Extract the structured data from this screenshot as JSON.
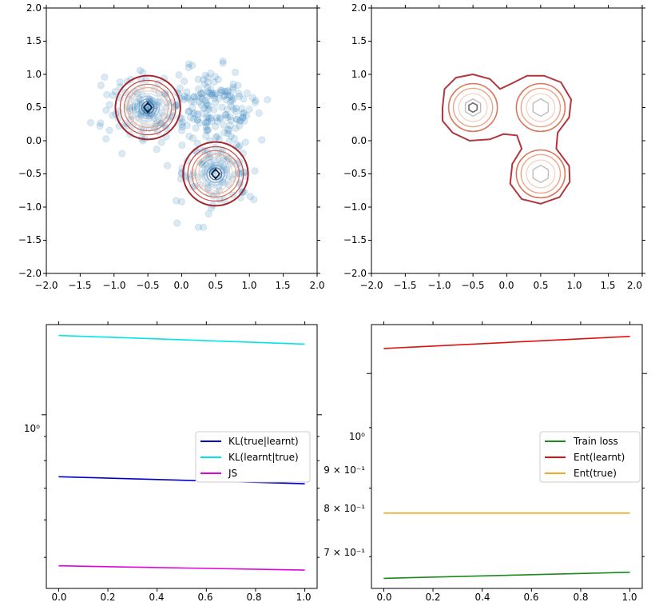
{
  "chart_data": [
    {
      "type": "scatter",
      "panel": "top-left",
      "xlim": [
        -2.0,
        2.0
      ],
      "ylim": [
        -2.0,
        2.0
      ],
      "xticks": [
        "−2.0",
        "−1.5",
        "−1.0",
        "−0.5",
        "0.0",
        "0.5",
        "1.0",
        "1.5",
        "2.0"
      ],
      "yticks": [
        "−2.0",
        "−1.5",
        "−1.0",
        "−0.5",
        "0.0",
        "0.5",
        "1.0",
        "1.5",
        "2.0"
      ],
      "scatter_clusters": [
        {
          "cx": -0.5,
          "cy": 0.5,
          "sx": 0.32,
          "sy": 0.25,
          "n": 140
        },
        {
          "cx": 0.5,
          "cy": -0.5,
          "sx": 0.3,
          "sy": 0.26,
          "n": 110
        },
        {
          "cx": 0.45,
          "cy": 0.5,
          "sx": 0.3,
          "sy": 0.28,
          "n": 160
        }
      ],
      "scatter_color": "#1f77b4",
      "contour_centers": [
        [
          -0.5,
          0.5
        ],
        [
          0.5,
          -0.5
        ]
      ],
      "contour_radii": [
        0.05,
        0.09,
        0.13,
        0.17,
        0.21,
        0.25,
        0.3,
        0.35,
        0.41,
        0.48
      ],
      "contour_colors": [
        "#1f3d6b",
        "#4a6fa0",
        "#7fa4c8",
        "#a9c6de",
        "#cde0ee",
        "#f5d5c5",
        "#eeaa8c",
        "#d9765c",
        "#bf4a45",
        "#a3262d"
      ]
    },
    {
      "type": "contour",
      "panel": "top-right",
      "xlim": [
        -2.0,
        2.0
      ],
      "ylim": [
        -2.0,
        2.0
      ],
      "xticks": [
        "−2.0",
        "−1.5",
        "−1.0",
        "−0.5",
        "0.0",
        "0.5",
        "1.0",
        "1.5",
        "2.0"
      ],
      "yticks": [
        "−2.0",
        "−1.5",
        "−1.0",
        "−0.5",
        "0.0",
        "0.5",
        "1.0",
        "1.5",
        "2.0"
      ],
      "centers": [
        [
          -0.5,
          0.5
        ],
        [
          0.5,
          0.5
        ],
        [
          0.5,
          -0.5
        ]
      ],
      "outer_color": "#b2363d"
    },
    {
      "type": "line",
      "panel": "bottom-left",
      "xlim": [
        -0.05,
        1.05
      ],
      "yscale": "log",
      "ylim": [
        0.43,
        1.55
      ],
      "xticks": [
        "0.0",
        "0.2",
        "0.4",
        "0.6",
        "0.8",
        "1.0"
      ],
      "yticks": [
        "10⁰"
      ],
      "legend_position": "center-right",
      "series": [
        {
          "name": "KL(true|learnt)",
          "color": "#0000cc",
          "x": [
            0,
            1
          ],
          "y": [
            0.74,
            0.715
          ]
        },
        {
          "name": "KL(learnt|true)",
          "color": "#00e5e5",
          "x": [
            0,
            1
          ],
          "y": [
            1.47,
            1.41
          ]
        },
        {
          "name": "JS",
          "color": "#e000e0",
          "x": [
            0,
            1
          ],
          "y": [
            0.48,
            0.47
          ]
        }
      ]
    },
    {
      "type": "line",
      "panel": "bottom-right",
      "xlim": [
        -0.05,
        1.05
      ],
      "yscale": "log",
      "ylim": [
        0.658,
        1.1
      ],
      "xticks": [
        "0.0",
        "0.2",
        "0.4",
        "0.6",
        "0.8",
        "1.0"
      ],
      "yticks": [
        "10⁰",
        "9 × 10⁻¹",
        "8 × 10⁻¹",
        "7 × 10⁻¹"
      ],
      "legend_position": "center-right",
      "series": [
        {
          "name": "Train loss",
          "color": "#1a8a1a",
          "x": [
            0,
            1
          ],
          "y": [
            0.671,
            0.679
          ]
        },
        {
          "name": "Ent(learnt)",
          "color": "#dd1111",
          "x": [
            0,
            1
          ],
          "y": [
            1.05,
            1.075
          ]
        },
        {
          "name": "Ent(true)",
          "color": "#f5a623",
          "x": [
            0,
            1
          ],
          "y": [
            0.762,
            0.762
          ]
        }
      ]
    }
  ]
}
